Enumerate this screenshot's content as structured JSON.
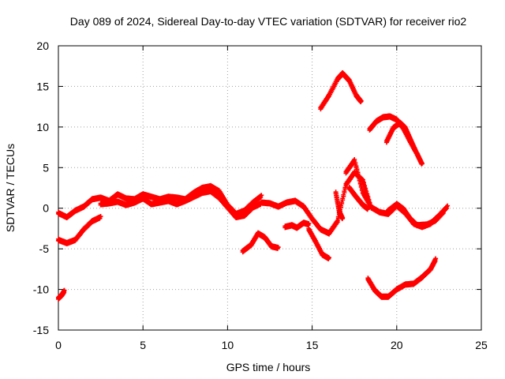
{
  "chart_data": {
    "type": "scatter",
    "title": "Day 089 of 2024, Sidereal Day-to-day VTEC variation (SDTVAR) for receiver rio2",
    "xlabel": "GPS time / hours",
    "ylabel": "SDTVAR / TECUs",
    "xlim": [
      0,
      25
    ],
    "ylim": [
      -15,
      20
    ],
    "xticks": [
      "0",
      "5",
      "10",
      "15",
      "20",
      "25"
    ],
    "yticks": [
      "-15",
      "-10",
      "-5",
      "0",
      "5",
      "10",
      "15",
      "20"
    ],
    "grid": true,
    "marker": "plus",
    "color": "#ff0000",
    "series": [
      {
        "name": "arc-main",
        "points": [
          [
            0,
            -0.5
          ],
          [
            0.5,
            -1
          ],
          [
            1,
            -0.2
          ],
          [
            1.5,
            0.3
          ],
          [
            2,
            1.2
          ],
          [
            2.5,
            1.4
          ],
          [
            3,
            1.0
          ],
          [
            3.5,
            1.8
          ],
          [
            4,
            1.3
          ],
          [
            4.5,
            1.2
          ],
          [
            5,
            1.8
          ],
          [
            5.5,
            1.5
          ],
          [
            6,
            1.2
          ],
          [
            6.5,
            1.5
          ],
          [
            7,
            1.4
          ],
          [
            7.5,
            1.2
          ],
          [
            8,
            2
          ],
          [
            8.5,
            2.6
          ],
          [
            9,
            2.8
          ],
          [
            9.5,
            2.2
          ],
          [
            10,
            0.5
          ],
          [
            10.5,
            -0.6
          ],
          [
            11,
            -0.2
          ],
          [
            11.5,
            0.8
          ],
          [
            12,
            1.6
          ]
        ]
      },
      {
        "name": "arc-lower-band",
        "points": [
          [
            2.5,
            0.6
          ],
          [
            3,
            0.7
          ],
          [
            3.5,
            0.9
          ],
          [
            4,
            0.5
          ],
          [
            4.5,
            0.8
          ],
          [
            5,
            1.3
          ],
          [
            5.5,
            0.6
          ],
          [
            6,
            0.8
          ],
          [
            6.5,
            1.0
          ],
          [
            7,
            0.6
          ],
          [
            7.5,
            1.0
          ],
          [
            8,
            1.5
          ],
          [
            8.5,
            2.0
          ],
          [
            9,
            2.2
          ],
          [
            9.5,
            1.4
          ],
          [
            10,
            0.2
          ],
          [
            10.5,
            -1.0
          ],
          [
            11,
            -0.8
          ],
          [
            11.5,
            0.2
          ],
          [
            12,
            0.7
          ]
        ]
      },
      {
        "name": "arc-mid",
        "points": [
          [
            12,
            0.8
          ],
          [
            12.5,
            0.7
          ],
          [
            13,
            0.3
          ],
          [
            13.5,
            0.8
          ],
          [
            14,
            1.0
          ],
          [
            14.5,
            0.3
          ],
          [
            15,
            -1.2
          ],
          [
            15.5,
            -2.5
          ],
          [
            16,
            -3.0
          ],
          [
            16.5,
            -1.5
          ],
          [
            17,
            3
          ],
          [
            17.5,
            4.5
          ],
          [
            18,
            3.5
          ],
          [
            18.5,
            0.0
          ]
        ]
      },
      {
        "name": "arc-mid-tail",
        "points": [
          [
            17,
            4.5
          ],
          [
            17.5,
            6
          ],
          [
            18,
            2
          ],
          [
            18.5,
            0.2
          ],
          [
            19,
            -0.4
          ],
          [
            19.5,
            -0.6
          ],
          [
            20,
            0.4
          ],
          [
            20.5,
            -0.5
          ],
          [
            21,
            -1.8
          ],
          [
            21.5,
            -2.2
          ],
          [
            22,
            -1.8
          ],
          [
            22.5,
            -0.8
          ],
          [
            23,
            0.3
          ]
        ]
      },
      {
        "name": "arc-mid-secondary",
        "points": [
          [
            17.2,
            2.6
          ],
          [
            17.6,
            1.5
          ],
          [
            18,
            0.5
          ],
          [
            18.3,
            0.0
          ]
        ]
      },
      {
        "name": "arc-mid-tail-2",
        "points": [
          [
            19.5,
            -0.2
          ],
          [
            20,
            0.6
          ],
          [
            20.4,
            0
          ],
          [
            20.8,
            -1.2
          ],
          [
            21.2,
            -2.0
          ],
          [
            21.8,
            -1.9
          ],
          [
            22.3,
            -1.4
          ],
          [
            22.8,
            -0.3
          ]
        ]
      },
      {
        "name": "arc-dip-15",
        "points": [
          [
            14.8,
            -2.5
          ],
          [
            15.2,
            -4.0
          ],
          [
            15.6,
            -5.6
          ],
          [
            16,
            -6.1
          ]
        ]
      },
      {
        "name": "arc-small-14",
        "points": [
          [
            13.4,
            -2.2
          ],
          [
            13.8,
            -2.0
          ],
          [
            14.1,
            -2.3
          ],
          [
            14.5,
            -1.7
          ],
          [
            14.8,
            -1.9
          ]
        ]
      },
      {
        "name": "arc-right-peak",
        "points": [
          [
            16.4,
            2
          ],
          [
            16.6,
            -0.3
          ],
          [
            16.8,
            -1.2
          ]
        ]
      },
      {
        "name": "arc-top-1",
        "points": [
          [
            15.5,
            12.4
          ],
          [
            16,
            14
          ],
          [
            16.5,
            16
          ],
          [
            16.8,
            16.7
          ],
          [
            17.2,
            15.8
          ],
          [
            17.6,
            14
          ],
          [
            17.9,
            13.2
          ]
        ]
      },
      {
        "name": "arc-top-2",
        "points": [
          [
            18.4,
            9.8
          ],
          [
            18.8,
            10.8
          ],
          [
            19.2,
            11.3
          ],
          [
            19.6,
            11.4
          ],
          [
            20,
            11.0
          ],
          [
            20.4,
            9.9
          ],
          [
            20.8,
            8.3
          ],
          [
            21.2,
            6.8
          ],
          [
            21.5,
            5.5
          ]
        ]
      },
      {
        "name": "arc-top-3",
        "points": [
          [
            19.4,
            8.3
          ],
          [
            19.8,
            10.0
          ],
          [
            20.2,
            10.6
          ],
          [
            20.5,
            10.0
          ],
          [
            20.8,
            8.6
          ],
          [
            21.1,
            7.2
          ]
        ]
      },
      {
        "name": "arc-low-left",
        "points": [
          [
            0,
            -3.8
          ],
          [
            0.5,
            -4.2
          ],
          [
            1,
            -3.8
          ],
          [
            1.5,
            -2.5
          ],
          [
            2,
            -1.5
          ],
          [
            2.5,
            -1.0
          ]
        ]
      },
      {
        "name": "arc-low-mid",
        "points": [
          [
            10.9,
            -5.2
          ],
          [
            11.4,
            -4.4
          ],
          [
            11.8,
            -3.0
          ],
          [
            12.2,
            -3.5
          ],
          [
            12.6,
            -4.6
          ],
          [
            13.0,
            -4.8
          ]
        ]
      },
      {
        "name": "arc-low-left-2",
        "points": [
          [
            0,
            -11
          ],
          [
            0.2,
            -10.6
          ],
          [
            0.35,
            -10.1
          ]
        ]
      },
      {
        "name": "arc-low-right",
        "points": [
          [
            18.3,
            -8.6
          ],
          [
            18.7,
            -10.0
          ],
          [
            19.1,
            -10.8
          ],
          [
            19.5,
            -10.8
          ],
          [
            20,
            -9.9
          ],
          [
            20.5,
            -9.3
          ],
          [
            21,
            -9.2
          ],
          [
            21.5,
            -8.4
          ],
          [
            22,
            -7.4
          ],
          [
            22.3,
            -6.2
          ]
        ]
      }
    ]
  }
}
